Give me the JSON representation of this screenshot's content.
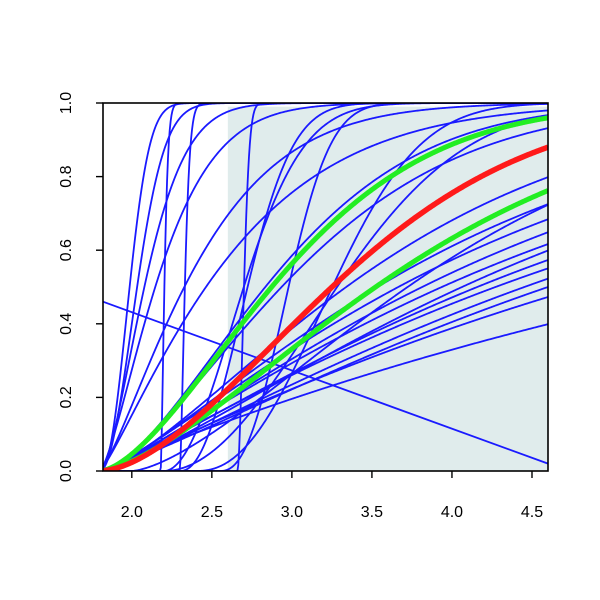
{
  "colors": {
    "curve": "#1a1aff",
    "mean": "#ff1a1a",
    "band": "#22ee22",
    "shade": "#e0ecec",
    "axis": "#000000"
  },
  "chart_data": {
    "type": "line",
    "title": "",
    "xlabel": "",
    "ylabel": "",
    "xlim": [
      1.82,
      4.6
    ],
    "ylim": [
      0,
      1
    ],
    "xticks": [
      "2.0",
      "2.5",
      "3.0",
      "3.5",
      "4.0",
      "4.5"
    ],
    "yticks": [
      "0.0",
      "0.2",
      "0.4",
      "0.6",
      "0.8",
      "1.0"
    ],
    "grid": false,
    "legend": "none",
    "shaded_region": {
      "x_from": 2.6,
      "x_to": 4.6
    },
    "model": "each curve y = 1 - exp(-((x - x0) / scale) ^ shape)",
    "series": [
      {
        "role": "mean",
        "x0": 1.8,
        "scale": 1.8,
        "shape": 1.7
      },
      {
        "role": "band",
        "x0": 1.8,
        "scale": 1.35,
        "shape": 1.6
      },
      {
        "role": "band",
        "x0": 1.8,
        "scale": 2.2,
        "shape": 1.5
      },
      {
        "role": "sample",
        "x0": 1.8,
        "scale": 0.22,
        "shape": 2.2
      },
      {
        "role": "sample",
        "x0": 1.8,
        "scale": 0.28,
        "shape": 2.0
      },
      {
        "role": "sample",
        "x0": 1.8,
        "scale": 0.35,
        "shape": 1.6
      },
      {
        "role": "sample",
        "x0": 1.8,
        "scale": 0.45,
        "shape": 1.4
      },
      {
        "role": "sample",
        "x0": 1.8,
        "scale": 0.7,
        "shape": 1.3
      },
      {
        "role": "sample",
        "x0": 1.8,
        "scale": 0.9,
        "shape": 1.2
      },
      {
        "role": "sample",
        "x0": 1.8,
        "scale": 1.3,
        "shape": 1.6
      },
      {
        "role": "sample",
        "x0": 1.8,
        "scale": 1.45,
        "shape": 1.5
      },
      {
        "role": "sample",
        "x0": 1.8,
        "scale": 2.0,
        "shape": 1.4
      },
      {
        "role": "sample",
        "x0": 1.8,
        "scale": 2.3,
        "shape": 1.3
      },
      {
        "role": "sample",
        "x0": 1.8,
        "scale": 2.5,
        "shape": 1.25
      },
      {
        "role": "sample",
        "x0": 1.8,
        "scale": 2.7,
        "shape": 1.25
      },
      {
        "role": "sample",
        "x0": 1.8,
        "scale": 2.9,
        "shape": 1.2
      },
      {
        "role": "sample",
        "x0": 1.8,
        "scale": 3.0,
        "shape": 1.3
      },
      {
        "role": "sample",
        "x0": 1.8,
        "scale": 3.2,
        "shape": 1.2
      },
      {
        "role": "sample",
        "x0": 1.8,
        "scale": 3.4,
        "shape": 1.15
      },
      {
        "role": "sample",
        "x0": 1.8,
        "scale": 3.6,
        "shape": 1.2
      },
      {
        "role": "sample",
        "x0": 1.8,
        "scale": 3.8,
        "shape": 1.2
      },
      {
        "role": "sample",
        "x0": 1.8,
        "scale": 4.2,
        "shape": 1.1
      },
      {
        "role": "sample",
        "x0": 1.8,
        "scale": 5.5,
        "shape": 1.0
      },
      {
        "role": "sample",
        "x0": 2.18,
        "scale": 0.03,
        "shape": 1.5
      },
      {
        "role": "sample",
        "x0": 2.3,
        "scale": 0.04,
        "shape": 1.5
      },
      {
        "role": "sample",
        "x0": 2.66,
        "scale": 0.05,
        "shape": 1.8
      },
      {
        "role": "sample",
        "x0": 2.2,
        "scale": 0.6,
        "shape": 2.0
      },
      {
        "role": "sample",
        "x0": 2.3,
        "scale": 0.5,
        "shape": 2.2
      },
      {
        "role": "sample",
        "x0": 2.55,
        "scale": 0.5,
        "shape": 2.4
      },
      {
        "role": "sample",
        "x0": 2.4,
        "scale": 1.0,
        "shape": 2.3
      },
      {
        "role": "sample",
        "x0": 2.2,
        "scale": 1.3,
        "shape": 2.0
      },
      {
        "role": "sample",
        "x0": 2.0,
        "scale": 2.2,
        "shape": 1.5
      }
    ],
    "straight_line": {
      "x": [
        1.82,
        4.6
      ],
      "y": [
        0.46,
        0.02
      ]
    }
  }
}
